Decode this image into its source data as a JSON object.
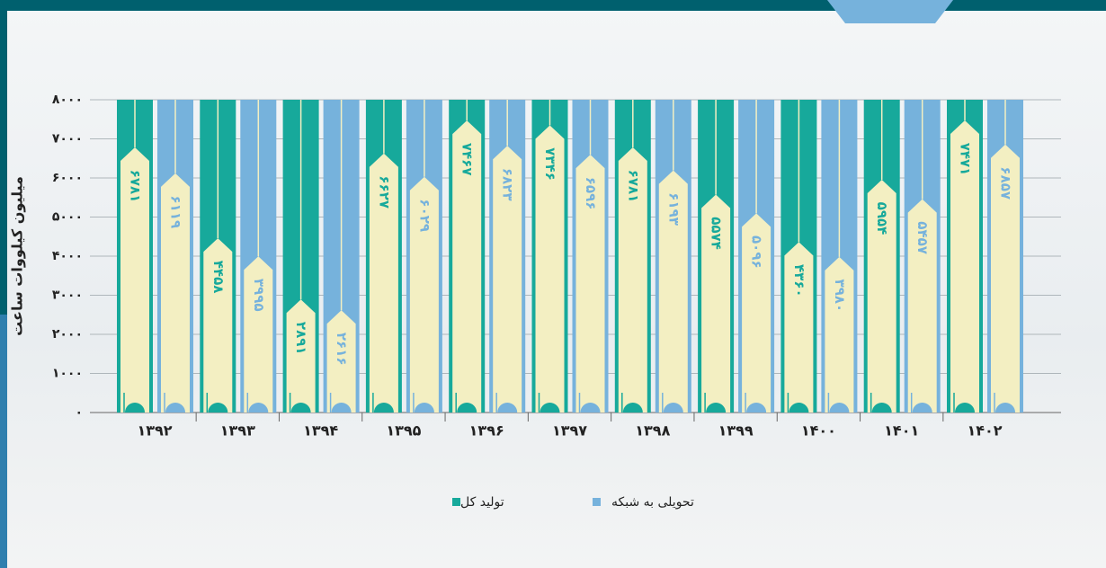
{
  "chart_data": {
    "type": "pencil-bar",
    "y_axis_label": "میلیون کیلووات ساعت",
    "categories": [
      "۱۳۹۲",
      "۱۳۹۳",
      "۱۳۹۴",
      "۱۳۹۵",
      "۱۳۹۶",
      "۱۳۹۷",
      "۱۳۹۸",
      "۱۳۹۹",
      "۱۴۰۰",
      "۱۴۰۱",
      "۱۴۰۲"
    ],
    "series": [
      {
        "name": "تولید کل",
        "color": "#17a99b",
        "values": [
          6781,
          4458,
          2891,
          6627,
          7467,
          7346,
          6781,
          5574,
          4360,
          5954,
          7471
        ],
        "value_labels": [
          "۶۷۸۱",
          "۴۴۵۸",
          "۲۸۹۱",
          "۶۶۲۷",
          "۷۴۶۷",
          "۷۳۴۶",
          "۶۷۸۱",
          "۵۵۷۴",
          "۴۳۶۰",
          "۵۹۵۴",
          "۷۴۷۱"
        ]
      },
      {
        "name": "تحویلی به شبکه",
        "color": "#76b2dc",
        "values": [
          6119,
          3995,
          2616,
          6029,
          6823,
          6596,
          6193,
          5096,
          3980,
          5457,
          6857
        ],
        "value_labels": [
          "۶۱۱۹",
          "۳۹۹۵",
          "۲۶۱۶",
          "۶۰۲۹",
          "۶۸۲۳",
          "۶۵۹۶",
          "۶۱۹۳",
          "۵۰۹۶",
          "۳۹۸۰",
          "۵۴۵۷",
          "۶۸۵۷"
        ]
      }
    ],
    "ylim": [
      0,
      8000
    ],
    "yticks": [
      {
        "value": 0,
        "label": "۰"
      },
      {
        "value": 1000,
        "label": "۱۰۰۰"
      },
      {
        "value": 2000,
        "label": "۲۰۰۰"
      },
      {
        "value": 3000,
        "label": "۳۰۰۰"
      },
      {
        "value": 4000,
        "label": "۴۰۰۰"
      },
      {
        "value": 5000,
        "label": "۵۰۰۰"
      },
      {
        "value": 6000,
        "label": "۶۰۰۰"
      },
      {
        "value": 7000,
        "label": "۷۰۰۰"
      },
      {
        "value": 8000,
        "label": "۸۰۰۰"
      }
    ],
    "grid": true
  }
}
